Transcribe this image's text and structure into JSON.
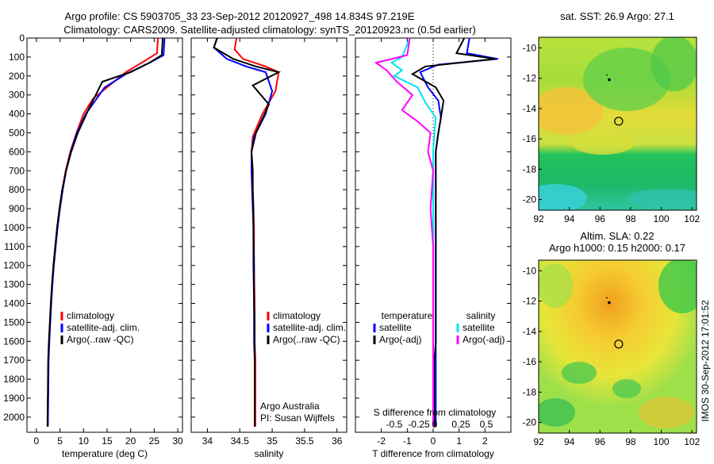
{
  "title_line1": "Argo profile: CS 5903705_33 23-Sep-2012 20120927_498 14.834S 97.219E",
  "title_line2": "Climatology: CARS2009. Satellite-adjusted climatology: synTS_20120923.nc (0.5d earlier)",
  "side_stamp": "IMOS 30-Sep-2012 17:01:52",
  "colors": {
    "clim": "#ff0000",
    "sat": "#0000ff",
    "argo": "#000000",
    "sat_s": "#00e5ee",
    "argo_s": "#ff00ff"
  },
  "chart_data": [
    {
      "type": "line",
      "id": "temperature",
      "xlabel": "temperature (deg C)",
      "xlim": [
        -2,
        31
      ],
      "ylim": [
        2080,
        0
      ],
      "xticks": [
        0,
        5,
        10,
        15,
        20,
        25,
        30
      ],
      "yticks": [
        0,
        100,
        200,
        300,
        400,
        500,
        600,
        700,
        800,
        900,
        1000,
        1100,
        1200,
        1300,
        1400,
        1500,
        1600,
        1700,
        1800,
        1900,
        2000
      ],
      "legend": [
        "climatology",
        "satellite-adj. clim.",
        "Argo(..raw -QC)"
      ],
      "series": [
        {
          "name": "climatology",
          "color_key": "clim",
          "x": [
            25.8,
            25.6,
            23,
            19,
            15.5,
            12,
            10,
            8.5,
            7.2,
            6.2,
            5.5,
            4.9,
            4.4,
            4.0,
            3.65,
            3.35,
            3.1,
            2.9,
            2.7,
            2.55,
            2.4
          ],
          "y": [
            0,
            80,
            120,
            180,
            250,
            320,
            400,
            500,
            600,
            700,
            800,
            900,
            1000,
            1100,
            1200,
            1300,
            1400,
            1500,
            1600,
            1700,
            2050
          ]
        },
        {
          "name": "satellite-adj. clim.",
          "color_key": "sat",
          "x": [
            27.2,
            27.0,
            24,
            19,
            14.5,
            12.5,
            10.5,
            8.6,
            7.3,
            6.3,
            5.6,
            5.0,
            4.5,
            4.1,
            3.7,
            3.4,
            3.15,
            2.95,
            2.75,
            2.6,
            2.45
          ],
          "y": [
            0,
            90,
            130,
            190,
            260,
            330,
            400,
            500,
            600,
            700,
            800,
            900,
            1000,
            1100,
            1200,
            1300,
            1400,
            1500,
            1600,
            1700,
            2050
          ]
        },
        {
          "name": "Argo(..raw -QC)",
          "color_key": "argo",
          "x": [
            26.8,
            26.6,
            24,
            20,
            14,
            13,
            11,
            8.8,
            7.4,
            6.3,
            5.5,
            4.9,
            4.4,
            4.0,
            3.6,
            3.3,
            3.05,
            2.85,
            2.65,
            2.5,
            2.35
          ],
          "y": [
            0,
            90,
            130,
            180,
            230,
            280,
            380,
            500,
            600,
            700,
            800,
            900,
            1000,
            1100,
            1200,
            1300,
            1400,
            1500,
            1600,
            1700,
            2050
          ]
        }
      ],
      "annotations": []
    },
    {
      "type": "line",
      "id": "salinity",
      "xlabel": "salinity",
      "xlim": [
        33.75,
        36.15
      ],
      "ylim": [
        2080,
        0
      ],
      "xticks": [
        34,
        34.5,
        35,
        35.5,
        36
      ],
      "legend": [
        "climatology",
        "satellite-adj. clim.",
        "Argo(..raw -QC)"
      ],
      "series": [
        {
          "name": "climatology",
          "color_key": "clim",
          "x": [
            34.45,
            34.42,
            34.55,
            34.9,
            35.1,
            35.05,
            34.85,
            34.7,
            34.68,
            34.7,
            34.7,
            34.71,
            34.72,
            34.72,
            34.73,
            34.73,
            34.73,
            34.74,
            34.74,
            34.74,
            34.74
          ],
          "y": [
            0,
            60,
            110,
            150,
            180,
            280,
            400,
            520,
            600,
            700,
            800,
            900,
            1000,
            1200,
            1400,
            1500,
            1600,
            1700,
            1800,
            1900,
            2050
          ]
        },
        {
          "name": "satellite-adj. clim.",
          "color_key": "sat",
          "x": [
            34.15,
            34.1,
            34.3,
            34.6,
            34.9,
            35.0,
            34.9,
            34.72,
            34.68,
            34.68,
            34.69,
            34.7,
            34.71,
            34.71,
            34.72,
            34.72,
            34.72,
            34.73,
            34.73,
            34.73,
            34.73
          ],
          "y": [
            0,
            50,
            110,
            150,
            180,
            280,
            400,
            520,
            600,
            700,
            800,
            900,
            1000,
            1200,
            1400,
            1500,
            1600,
            1700,
            1800,
            1900,
            2050
          ]
        },
        {
          "name": "Argo(..raw -QC)",
          "color_key": "argo",
          "x": [
            34.15,
            34.1,
            34.4,
            34.75,
            35.1,
            34.7,
            34.95,
            34.75,
            34.68,
            34.7,
            34.7,
            34.71,
            34.71,
            34.72,
            34.72,
            34.73,
            34.73,
            34.73,
            34.73,
            34.73,
            34.73
          ],
          "y": [
            0,
            50,
            110,
            150,
            180,
            250,
            350,
            500,
            600,
            700,
            800,
            900,
            1000,
            1200,
            1400,
            1500,
            1600,
            1700,
            1800,
            1900,
            2050
          ]
        }
      ],
      "annotations": [
        "Argo Australia",
        "PI: Susan Wijffels"
      ]
    },
    {
      "type": "line",
      "id": "difference",
      "xlabel": "T difference from climatology",
      "xlabel_top": "S difference from climatology",
      "xlim": [
        -3,
        3
      ],
      "ylim": [
        2080,
        0
      ],
      "xticks": [
        -2,
        -1,
        0,
        1,
        2
      ],
      "xticks_s": [
        "-0.5",
        "-0.25",
        "0",
        "0.25",
        "0.5"
      ],
      "legend_heads": [
        "temperature",
        "salinity"
      ],
      "legend": [
        "satellite",
        "Argo(-adj)",
        "satellite",
        "Argo(-adj)"
      ],
      "series": [
        {
          "name": "T satellite",
          "color_key": "sat",
          "x": [
            1.4,
            1.3,
            2.5,
            0.2,
            -0.5,
            -0.2,
            0.2,
            0.3,
            0.2,
            0.1,
            0.1,
            0.1,
            0.1,
            0.1,
            0.1,
            0.1,
            0.1,
            0.1,
            0.1,
            0.1,
            0.1
          ],
          "y": [
            0,
            80,
            110,
            140,
            180,
            260,
            330,
            420,
            500,
            600,
            700,
            900,
            1100,
            1300,
            1500,
            1600,
            1700,
            1800,
            1900,
            2000,
            2050
          ]
        },
        {
          "name": "T Argo(-adj)",
          "color_key": "argo",
          "x": [
            1.2,
            0.9,
            2.4,
            -0.3,
            -0.8,
            0.1,
            0.4,
            0.3,
            0.2,
            0.1,
            0.1,
            0.1,
            0.1,
            0.1,
            0.1,
            0.1,
            0.05,
            0.05,
            0.05,
            0.05,
            0.05
          ],
          "y": [
            0,
            80,
            110,
            150,
            190,
            260,
            330,
            420,
            500,
            600,
            700,
            900,
            1100,
            1300,
            1500,
            1600,
            1700,
            1800,
            1900,
            2000,
            2050
          ]
        },
        {
          "name": "S satellite",
          "color_key": "sat_s",
          "x": [
            -0.9,
            -1.2,
            -1.6,
            -1.2,
            -1.5,
            -0.6,
            -0.3,
            0.1,
            0.05,
            0.0,
            0.0,
            0.0,
            0.0,
            0.0,
            0.0,
            0.0,
            0.0,
            0.0,
            0.0,
            0.0,
            0.0
          ],
          "y": [
            0,
            100,
            130,
            170,
            200,
            260,
            340,
            420,
            500,
            600,
            700,
            900,
            1100,
            1300,
            1500,
            1600,
            1700,
            1800,
            1900,
            2000,
            2050
          ]
        },
        {
          "name": "S Argo(-adj)",
          "color_key": "argo_s",
          "x": [
            -0.9,
            -1.0,
            -2.2,
            -1.8,
            -1.4,
            -0.8,
            -1.2,
            -0.6,
            -0.1,
            -0.2,
            0.0,
            -0.1,
            0.0,
            0.0,
            0.0,
            0.0,
            0.0,
            0.0,
            0.0,
            0.0,
            0.0
          ],
          "y": [
            0,
            90,
            130,
            170,
            230,
            300,
            380,
            440,
            500,
            600,
            700,
            900,
            1100,
            1300,
            1500,
            1600,
            1700,
            1800,
            1900,
            2000,
            2050
          ]
        }
      ],
      "annotations": []
    },
    {
      "type": "heatmap",
      "id": "sst_map",
      "title": "sat. SST: 26.9 Argo: 27.1",
      "xlim": [
        92,
        102.3
      ],
      "ylim": [
        -20.7,
        -9.3
      ],
      "xticks": [
        92,
        94,
        96,
        98,
        100,
        102
      ],
      "yticks": [
        -10,
        -12,
        -14,
        -16,
        -18,
        -20
      ],
      "profile_marker": {
        "lon": 97.219,
        "lat": -14.834
      },
      "track_marker": {
        "lon": 96.6,
        "lat": -12.1
      }
    },
    {
      "type": "heatmap",
      "id": "sla_map",
      "title": "Altim. SLA: 0.22",
      "subtitle": "Argo h1000: 0.15 h2000: 0.17",
      "xlim": [
        92,
        102.3
      ],
      "ylim": [
        -20.7,
        -9.3
      ],
      "xticks": [
        92,
        94,
        96,
        98,
        100,
        102
      ],
      "yticks": [
        -10,
        -12,
        -14,
        -16,
        -18,
        -20
      ],
      "profile_marker": {
        "lon": 97.219,
        "lat": -14.834
      },
      "track_marker": {
        "lon": 96.6,
        "lat": -12.1
      }
    }
  ]
}
